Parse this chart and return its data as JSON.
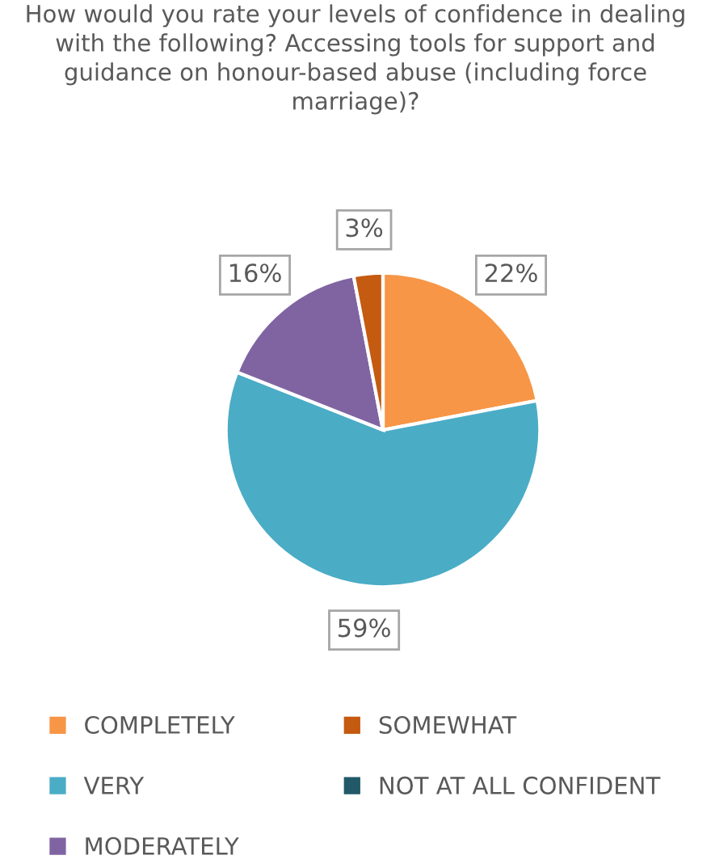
{
  "chart_data": {
    "type": "pie",
    "title": "How would you rate your levels of confidence in dealing with the following? Accessing tools for support and guidance on honour-based abuse (including force marriage)?",
    "categories": [
      "COMPLETELY",
      "VERY",
      "MODERATELY",
      "SOMEWHAT",
      "NOT AT ALL CONFIDENT"
    ],
    "values": [
      22,
      59,
      16,
      3,
      0
    ],
    "value_labels": [
      "22%",
      "59%",
      "16%",
      "3%",
      null
    ],
    "colors": [
      "#f79646",
      "#4bacc6",
      "#8064a2",
      "#c55a11",
      "#215968"
    ],
    "legend": "bottom"
  }
}
